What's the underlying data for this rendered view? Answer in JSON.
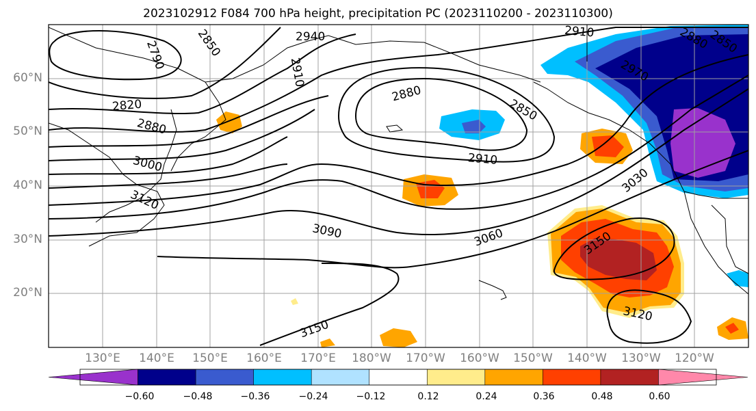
{
  "title": "2023102912 F084 700 hPa height, precipitation PC (2023110200 - 2023110300)",
  "lat_labels": [
    "60°N",
    "50°N",
    "40°N",
    "30°N",
    "20°N"
  ],
  "lon_labels": [
    "130°E",
    "140°E",
    "150°E",
    "160°E",
    "170°E",
    "180°W",
    "170°W",
    "160°W",
    "150°W",
    "140°W",
    "130°W",
    "120°W"
  ],
  "contour_labels": [
    "2790",
    "2850",
    "2940",
    "2910",
    "2820",
    "2880",
    "3000",
    "3120",
    "2880",
    "2850",
    "2910",
    "3090",
    "3060",
    "3030",
    "3150",
    "3150",
    "3120",
    "2910",
    "2880",
    "2850",
    "2970"
  ],
  "colorbar": {
    "colors": [
      "#9932cc",
      "#00008b",
      "#3a5bcf",
      "#00bfff",
      "#b0e2ff",
      "#ffffff",
      "#ffec8b",
      "#ffa500",
      "#ff4000",
      "#b22222",
      "#ff88aa"
    ],
    "tick_labels": [
      "−0.60",
      "−0.48",
      "−0.36",
      "−0.24",
      "−0.12",
      "0.12",
      "0.24",
      "0.36",
      "0.48",
      "0.60"
    ]
  }
}
